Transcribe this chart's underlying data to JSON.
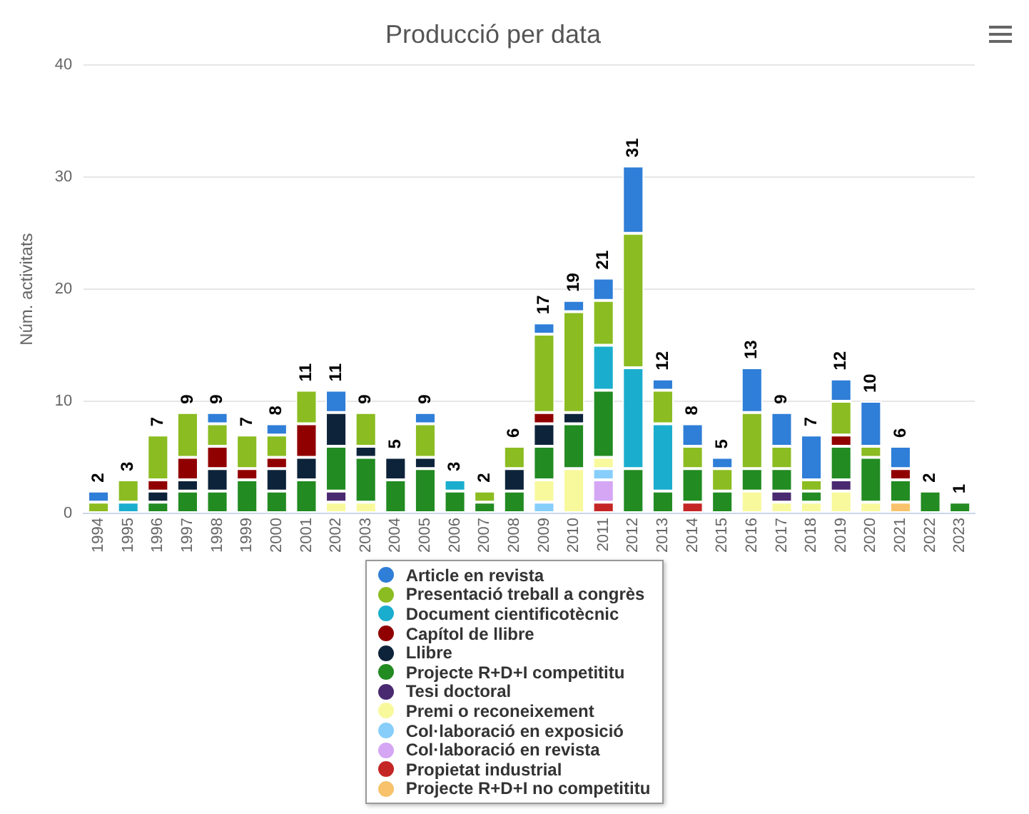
{
  "chart_data": {
    "type": "bar",
    "title": "Producció per data",
    "ylabel": "Núm. activitats",
    "stacked": true,
    "categories": [
      "1994",
      "1995",
      "1996",
      "1997",
      "1998",
      "1999",
      "2000",
      "2001",
      "2002",
      "2003",
      "2004",
      "2005",
      "2006",
      "2007",
      "2008",
      "2009",
      "2010",
      "2011",
      "2012",
      "2013",
      "2014",
      "2015",
      "2016",
      "2017",
      "2018",
      "2019",
      "2020",
      "2021",
      "2022",
      "2023"
    ],
    "series": [
      {
        "name": "Projecte R+D+I no competititu",
        "color": "#f7c26b",
        "values": [
          null,
          null,
          null,
          null,
          null,
          null,
          null,
          null,
          null,
          null,
          null,
          null,
          null,
          null,
          null,
          null,
          null,
          null,
          null,
          null,
          null,
          null,
          null,
          null,
          null,
          null,
          null,
          1,
          null,
          null
        ]
      },
      {
        "name": "Propietat industrial",
        "color": "#c42525",
        "values": [
          null,
          null,
          null,
          null,
          null,
          null,
          null,
          null,
          null,
          null,
          null,
          null,
          null,
          null,
          null,
          null,
          null,
          1,
          null,
          null,
          1,
          null,
          null,
          null,
          null,
          null,
          null,
          null,
          null,
          null
        ]
      },
      {
        "name": "Col·laboració en revista",
        "color": "#d4a6f4",
        "values": [
          null,
          null,
          null,
          null,
          null,
          null,
          null,
          null,
          null,
          null,
          null,
          null,
          null,
          null,
          null,
          null,
          null,
          2,
          null,
          null,
          null,
          null,
          null,
          null,
          null,
          null,
          null,
          null,
          null,
          null
        ]
      },
      {
        "name": "Col·laboració en exposició",
        "color": "#87cefa",
        "values": [
          null,
          null,
          null,
          null,
          null,
          null,
          null,
          null,
          null,
          null,
          null,
          null,
          null,
          null,
          null,
          1,
          null,
          1,
          null,
          null,
          null,
          null,
          null,
          null,
          null,
          null,
          null,
          null,
          null,
          null
        ]
      },
      {
        "name": "Premi o reconeixement",
        "color": "#f8f99c",
        "values": [
          null,
          null,
          null,
          null,
          null,
          null,
          null,
          null,
          1,
          1,
          null,
          null,
          null,
          null,
          null,
          2,
          4,
          1,
          null,
          null,
          null,
          null,
          2,
          1,
          1,
          2,
          1,
          null,
          null,
          null
        ]
      },
      {
        "name": "Tesi doctoral",
        "color": "#492970",
        "values": [
          null,
          null,
          null,
          null,
          null,
          null,
          null,
          null,
          1,
          null,
          null,
          null,
          null,
          null,
          null,
          null,
          null,
          null,
          null,
          null,
          null,
          null,
          null,
          1,
          null,
          1,
          null,
          null,
          null,
          null
        ]
      },
      {
        "name": "Projecte R+D+I competititu",
        "color": "#228b22",
        "values": [
          null,
          null,
          1,
          2,
          2,
          3,
          2,
          3,
          4,
          4,
          3,
          4,
          2,
          1,
          2,
          3,
          4,
          6,
          4,
          2,
          3,
          2,
          2,
          2,
          1,
          3,
          4,
          2,
          2,
          1
        ]
      },
      {
        "name": "Llibre",
        "color": "#0d233a",
        "values": [
          null,
          null,
          1,
          1,
          2,
          null,
          2,
          2,
          3,
          1,
          2,
          1,
          null,
          null,
          2,
          2,
          1,
          null,
          null,
          null,
          null,
          null,
          null,
          null,
          null,
          null,
          null,
          null,
          null,
          null
        ]
      },
      {
        "name": "Capítol de llibre",
        "color": "#910000",
        "values": [
          null,
          null,
          1,
          2,
          2,
          1,
          1,
          3,
          null,
          null,
          null,
          null,
          null,
          null,
          null,
          1,
          null,
          null,
          null,
          null,
          null,
          null,
          null,
          null,
          null,
          1,
          null,
          1,
          null,
          null
        ]
      },
      {
        "name": "Document cientificotècnic",
        "color": "#1aadce",
        "values": [
          null,
          1,
          null,
          null,
          null,
          null,
          null,
          null,
          null,
          null,
          null,
          null,
          1,
          null,
          null,
          null,
          null,
          4,
          9,
          6,
          null,
          null,
          null,
          null,
          null,
          null,
          null,
          null,
          null,
          null
        ]
      },
      {
        "name": "Presentació treball a congrès",
        "color": "#8bbc21",
        "values": [
          1,
          2,
          4,
          4,
          2,
          3,
          2,
          3,
          null,
          3,
          null,
          3,
          null,
          1,
          2,
          7,
          9,
          4,
          12,
          3,
          2,
          2,
          5,
          2,
          1,
          3,
          1,
          null,
          null,
          null
        ]
      },
      {
        "name": "Article en revista",
        "color": "#2f7ed8",
        "values": [
          1,
          null,
          null,
          null,
          1,
          null,
          1,
          null,
          2,
          null,
          null,
          1,
          null,
          null,
          null,
          1,
          1,
          2,
          6,
          1,
          2,
          1,
          4,
          3,
          4,
          2,
          4,
          2,
          null,
          null
        ]
      }
    ],
    "totals": [
      "2",
      "3",
      "7",
      "9",
      "9",
      "7",
      "8",
      "11",
      "11",
      "9",
      "5",
      "9",
      "3",
      "2",
      "6",
      "17",
      "19",
      "21",
      "31",
      "12",
      "8",
      "5",
      "13",
      "9",
      "7",
      "12",
      "10",
      "6",
      "2",
      "1"
    ],
    "ylim": [
      0,
      40
    ],
    "yticks": [
      0,
      10,
      20,
      30,
      40
    ],
    "grid": "y",
    "legend": "bottom"
  }
}
